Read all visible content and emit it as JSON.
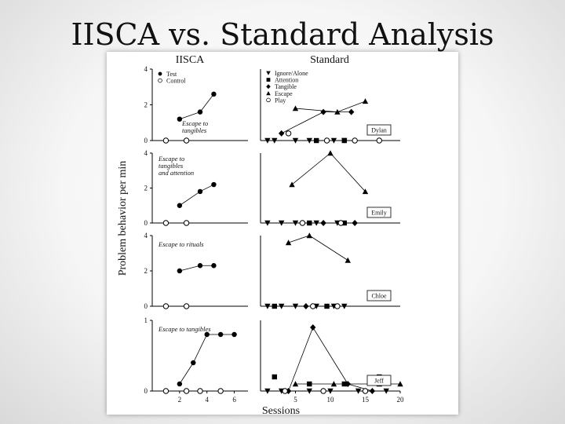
{
  "slide": {
    "title": "IISCA vs. Standard Analysis"
  },
  "figure": {
    "ylabel": "Problem behavior per min",
    "xlabel": "Sessions",
    "iisca_header": "IISCA",
    "standard_header": "Standard",
    "iisca_legend": [
      "Test",
      "Control"
    ],
    "standard_legend": [
      "Ignore/Alone",
      "Attention",
      "Tangible",
      "Escape",
      "Play"
    ]
  },
  "chart_data": [
    {
      "type": "line",
      "panel": "IISCA",
      "row": 1,
      "annotation": "Escape to tangibles",
      "ylim": [
        0,
        4
      ],
      "yticks": [
        "0",
        "2",
        "4"
      ],
      "xlim": [
        0,
        7
      ],
      "series": [
        {
          "name": "Test",
          "x": [
            2,
            3.5,
            4.5
          ],
          "y": [
            1.2,
            1.6,
            2.6
          ]
        },
        {
          "name": "Control",
          "x": [
            1,
            2.5
          ],
          "y": [
            0,
            0
          ]
        }
      ]
    },
    {
      "type": "line",
      "panel": "Standard",
      "row": 1,
      "participant": "Dylan",
      "ylim": [
        0,
        4
      ],
      "xlim": [
        0,
        20
      ],
      "series": [
        {
          "name": "Ignore/Alone",
          "x": [
            1,
            2,
            5,
            7,
            10.5,
            12
          ],
          "y": [
            0,
            0,
            0,
            0,
            0,
            0
          ]
        },
        {
          "name": "Attention",
          "x": [
            8,
            12
          ],
          "y": [
            0,
            0
          ]
        },
        {
          "name": "Tangible",
          "x": [
            3,
            9,
            13
          ],
          "y": [
            0.4,
            1.6,
            1.6
          ]
        },
        {
          "name": "Escape",
          "x": [
            5,
            11,
            15
          ],
          "y": [
            1.8,
            1.6,
            2.2
          ]
        },
        {
          "name": "Play",
          "x": [
            4,
            9.5,
            13.5,
            17
          ],
          "y": [
            0.4,
            0,
            0,
            0
          ]
        }
      ]
    },
    {
      "type": "line",
      "panel": "IISCA",
      "row": 2,
      "annotation": "Escape to tangibles and attention",
      "ylim": [
        0,
        4
      ],
      "yticks": [
        "0",
        "2",
        "4"
      ],
      "xlim": [
        0,
        7
      ],
      "series": [
        {
          "name": "Test",
          "x": [
            2,
            3.5,
            4.5
          ],
          "y": [
            1.0,
            1.8,
            2.2
          ]
        },
        {
          "name": "Control",
          "x": [
            1,
            2.5
          ],
          "y": [
            0,
            0
          ]
        }
      ]
    },
    {
      "type": "line",
      "panel": "Standard",
      "row": 2,
      "participant": "Emily",
      "ylim": [
        0,
        4
      ],
      "xlim": [
        0,
        20
      ],
      "series": [
        {
          "name": "Ignore/Alone",
          "x": [
            1,
            3,
            5,
            8,
            11
          ],
          "y": [
            0,
            0,
            0,
            0,
            0
          ]
        },
        {
          "name": "Attention",
          "x": [
            7,
            12
          ],
          "y": [
            0,
            0
          ]
        },
        {
          "name": "Tangible",
          "x": [
            9,
            13.5
          ],
          "y": [
            0,
            0
          ]
        },
        {
          "name": "Escape",
          "x": [
            4.5,
            10,
            15
          ],
          "y": [
            2.2,
            4.0,
            1.8
          ]
        },
        {
          "name": "Play",
          "x": [
            6,
            11.5
          ],
          "y": [
            0,
            0
          ]
        }
      ]
    },
    {
      "type": "line",
      "panel": "IISCA",
      "row": 3,
      "annotation": "Escape to rituals",
      "ylim": [
        0,
        4
      ],
      "yticks": [
        "0",
        "2",
        "4"
      ],
      "xlim": [
        0,
        7
      ],
      "series": [
        {
          "name": "Test",
          "x": [
            2,
            3.5,
            4.5
          ],
          "y": [
            2.0,
            2.3,
            2.3
          ]
        },
        {
          "name": "Control",
          "x": [
            1,
            2.5
          ],
          "y": [
            0,
            0
          ]
        }
      ]
    },
    {
      "type": "line",
      "panel": "Standard",
      "row": 3,
      "participant": "Chloe",
      "ylim": [
        0,
        4
      ],
      "xlim": [
        0,
        20
      ],
      "series": [
        {
          "name": "Ignore/Alone",
          "x": [
            1,
            3,
            5,
            8,
            10.5,
            12
          ],
          "y": [
            0,
            0,
            0,
            0,
            0,
            0
          ]
        },
        {
          "name": "Attention",
          "x": [
            2,
            9.5
          ],
          "y": [
            0,
            0
          ]
        },
        {
          "name": "Tangible",
          "x": [
            6.5
          ],
          "y": [
            0
          ]
        },
        {
          "name": "Escape",
          "x": [
            4,
            7,
            12.5
          ],
          "y": [
            3.6,
            4.0,
            2.6
          ]
        },
        {
          "name": "Play",
          "x": [
            7.5,
            11
          ],
          "y": [
            0,
            0
          ]
        }
      ]
    },
    {
      "type": "line",
      "panel": "IISCA",
      "row": 4,
      "annotation": "Escape to tangibles",
      "ylim": [
        0,
        1
      ],
      "yticks": [
        "0",
        "1"
      ],
      "xlim": [
        0,
        7
      ],
      "xticks": [
        "2",
        "4",
        "6"
      ],
      "series": [
        {
          "name": "Test",
          "x": [
            2,
            3,
            4,
            5,
            6
          ],
          "y": [
            0.1,
            0.4,
            0.8,
            0.8,
            0.8
          ]
        },
        {
          "name": "Control",
          "x": [
            1,
            2.5,
            3.5,
            5
          ],
          "y": [
            0,
            0,
            0,
            0
          ]
        }
      ]
    },
    {
      "type": "line",
      "panel": "Standard",
      "row": 4,
      "participant": "Jeff",
      "ylim": [
        0,
        1
      ],
      "xlim": [
        0,
        20
      ],
      "xticks": [
        "5",
        "10",
        "15",
        "20"
      ],
      "series": [
        {
          "name": "Ignore/Alone",
          "x": [
            1,
            3,
            7,
            10,
            14,
            18
          ],
          "y": [
            0,
            0,
            0,
            0,
            0,
            0
          ]
        },
        {
          "name": "Attention",
          "x": [
            2,
            7,
            12,
            17
          ],
          "y": [
            0.2,
            0.1,
            0.1,
            0.2
          ]
        },
        {
          "name": "Tangible",
          "x": [
            4,
            7.5,
            12.5,
            16
          ],
          "y": [
            0,
            0.9,
            0.1,
            0
          ]
        },
        {
          "name": "Escape",
          "x": [
            5,
            10.5,
            17,
            20
          ],
          "y": [
            0.1,
            0.1,
            0.1,
            0.1
          ]
        },
        {
          "name": "Play",
          "x": [
            3.5,
            9,
            15
          ],
          "y": [
            0,
            0,
            0
          ]
        }
      ]
    }
  ]
}
